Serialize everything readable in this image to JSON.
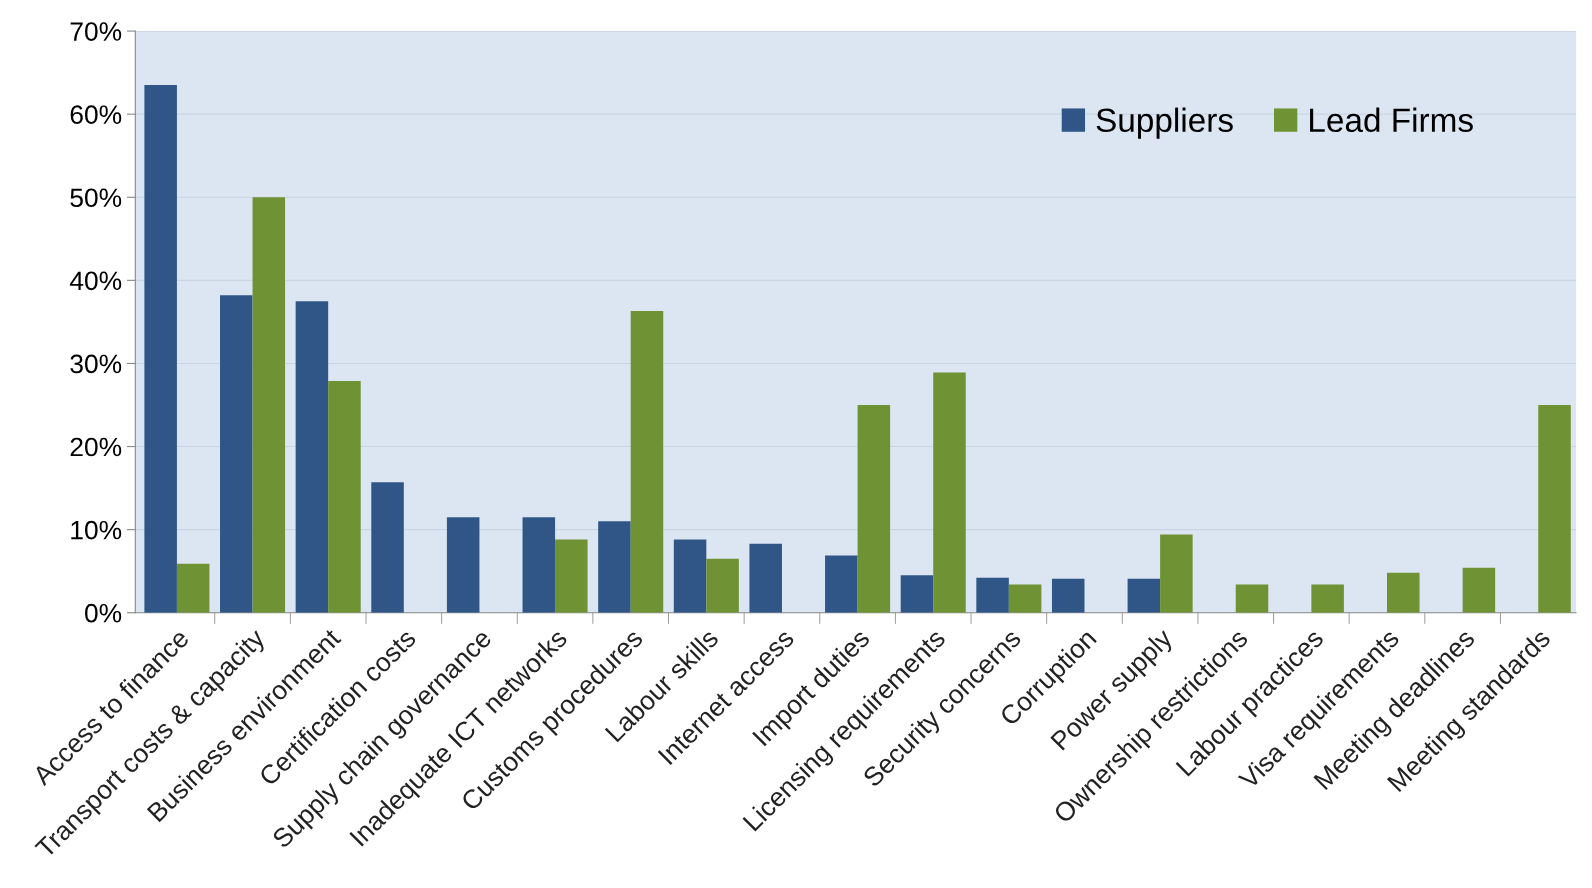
{
  "chart_data": {
    "type": "bar",
    "categories": [
      "Access to finance",
      "Transport costs & capacity",
      "Business environment",
      "Certification costs",
      "Supply chain governance",
      "Inadequate ICT networks",
      "Customs procedures",
      "Labour skills",
      "Internet access",
      "Import duties",
      "Licensing requirements",
      "Security concerns",
      "Corruption",
      "Power supply",
      "Ownership restrictions",
      "Labour practices",
      "Visa requirements",
      "Meeting deadlines",
      "Meeting standards"
    ],
    "series": [
      {
        "name": "Suppliers",
        "color": "#2f5687",
        "values": [
          63.5,
          38.2,
          37.5,
          15.7,
          11.5,
          11.5,
          11,
          8.8,
          8.3,
          6.9,
          4.5,
          4.2,
          4.1,
          4.1,
          null,
          null,
          null,
          null,
          null
        ]
      },
      {
        "name": "Lead Firms",
        "color": "#6f9234",
        "values": [
          5.9,
          50,
          27.9,
          null,
          null,
          8.8,
          36.3,
          6.5,
          null,
          25,
          28.9,
          3.4,
          null,
          9.4,
          3.4,
          3.4,
          4.8,
          5.4,
          25
        ]
      }
    ],
    "ylim": [
      0,
      70
    ],
    "yticks": [
      {
        "value": 0,
        "label": "0%"
      },
      {
        "value": 10,
        "label": "10%"
      },
      {
        "value": 20,
        "label": "20%"
      },
      {
        "value": 30,
        "label": "30%"
      },
      {
        "value": 40,
        "label": "40%"
      },
      {
        "value": 50,
        "label": "50%"
      },
      {
        "value": 60,
        "label": "60%"
      },
      {
        "value": 70,
        "label": "70%"
      }
    ],
    "grid": "y",
    "legend": "top right"
  }
}
